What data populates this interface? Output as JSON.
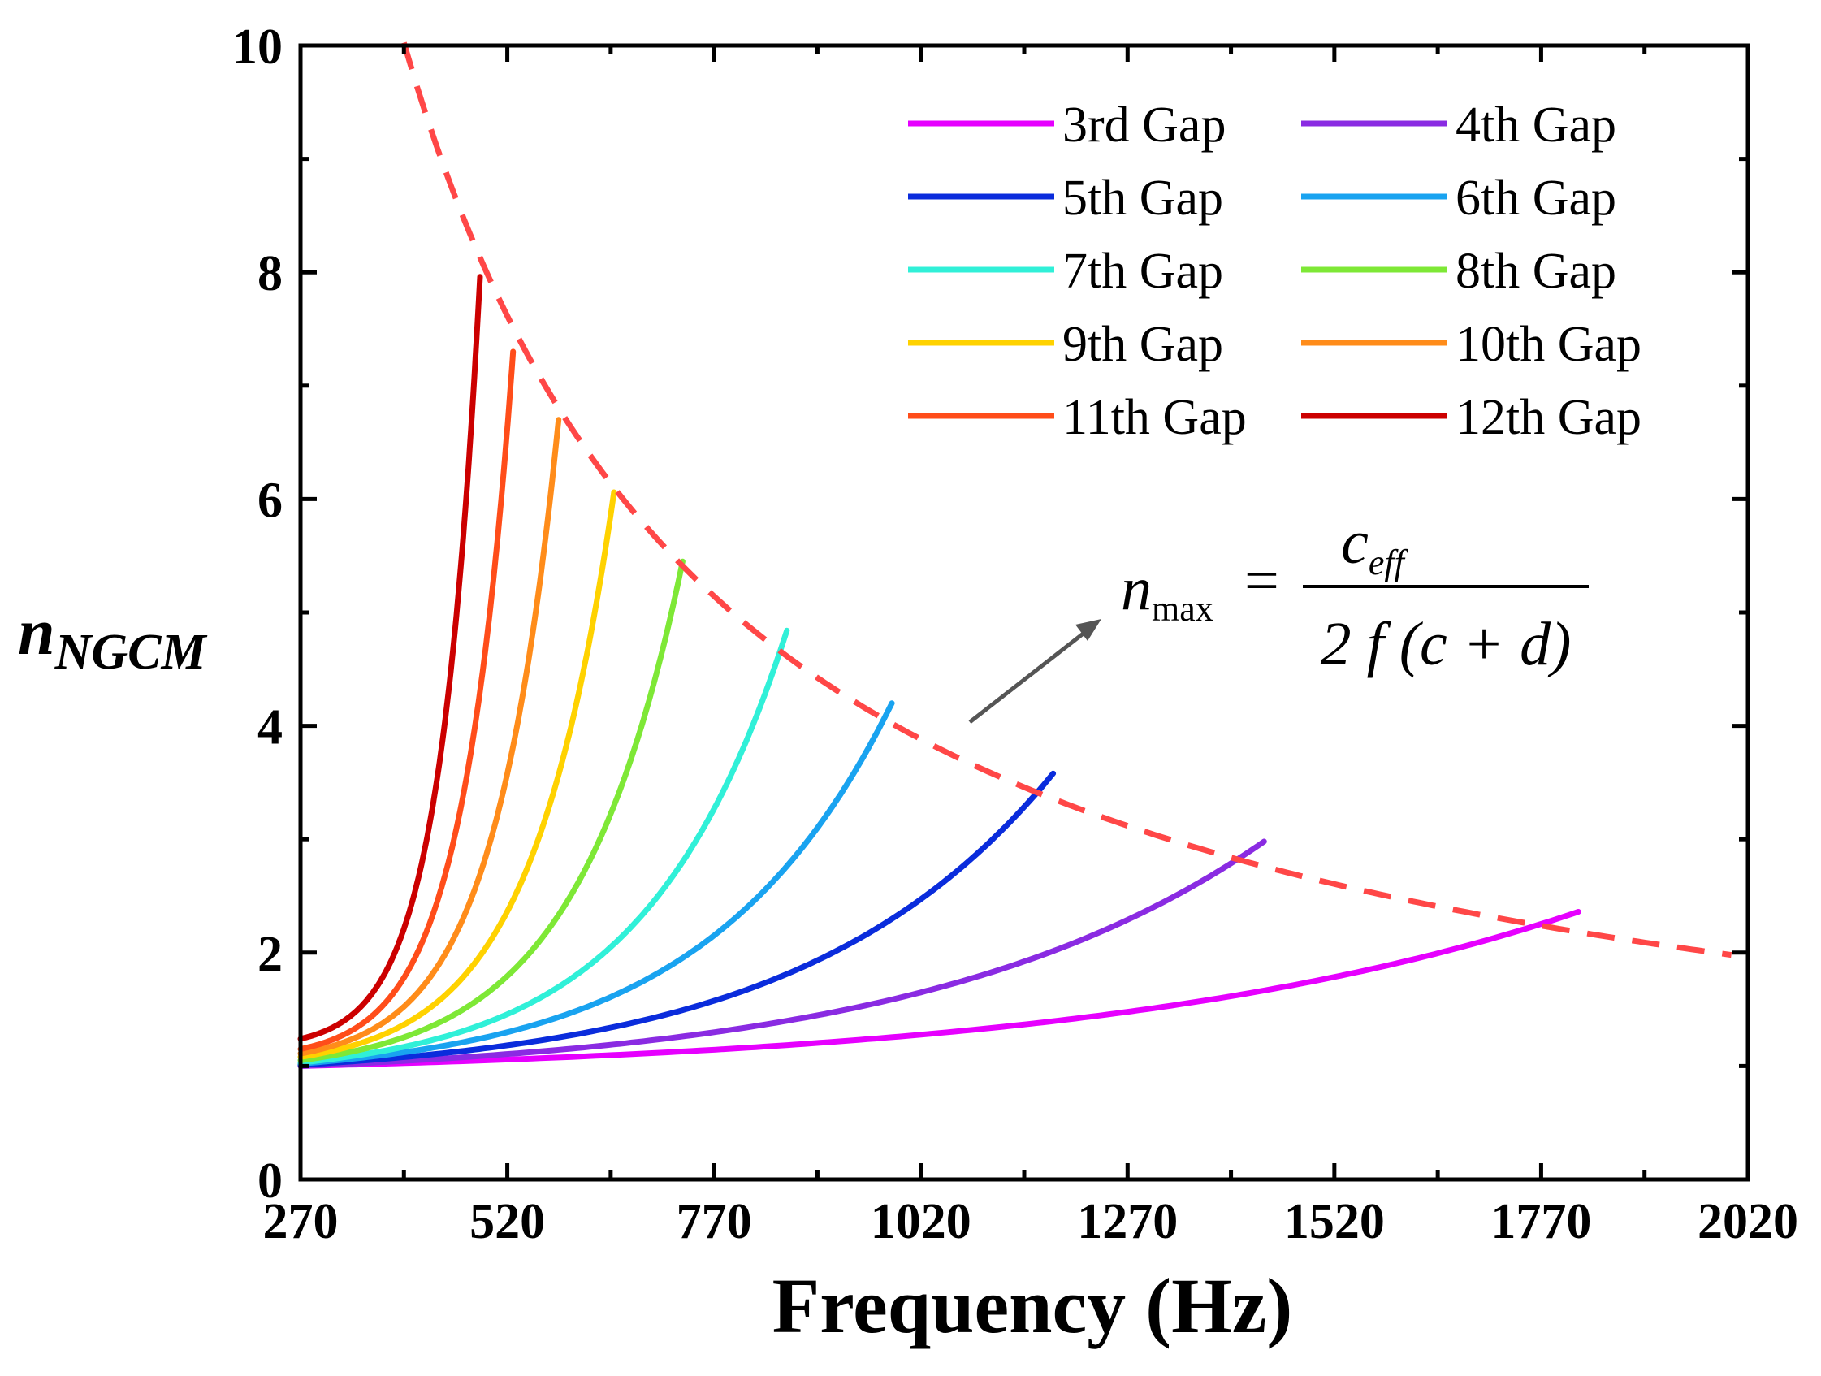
{
  "chart_data": {
    "type": "line",
    "xlabel": "Frequency (Hz)",
    "ylabel_main": "n",
    "ylabel_sub": "NGCM",
    "xlim": [
      270,
      2020
    ],
    "ylim": [
      0,
      10
    ],
    "xticks": [
      270,
      520,
      770,
      1020,
      1270,
      1520,
      1770,
      2020
    ],
    "yticks": [
      0,
      2,
      4,
      6,
      8,
      10
    ],
    "legend_position": "top-right",
    "series": [
      {
        "name": "3rd Gap",
        "color": "#e600ff",
        "start": [
          270,
          1.0
        ],
        "end": [
          1815,
          2.36
        ],
        "curvature": 2.6
      },
      {
        "name": "4th Gap",
        "color": "#8a2be2",
        "start": [
          270,
          1.0
        ],
        "end": [
          1435,
          2.98
        ],
        "curvature": 2.8
      },
      {
        "name": "5th Gap",
        "color": "#0a2cdc",
        "start": [
          270,
          1.01
        ],
        "end": [
          1180,
          3.58
        ],
        "curvature": 3.0
      },
      {
        "name": "6th Gap",
        "color": "#19a3f0",
        "start": [
          270,
          1.02
        ],
        "end": [
          985,
          4.2
        ],
        "curvature": 3.2
      },
      {
        "name": "7th Gap",
        "color": "#30f0d8",
        "start": [
          270,
          1.03
        ],
        "end": [
          858,
          4.84
        ],
        "curvature": 3.4
      },
      {
        "name": "8th Gap",
        "color": "#7ee836",
        "start": [
          270,
          1.05
        ],
        "end": [
          732,
          5.45
        ],
        "curvature": 3.6
      },
      {
        "name": "9th Gap",
        "color": "#ffd200",
        "start": [
          270,
          1.08
        ],
        "end": [
          649,
          6.06
        ],
        "curvature": 3.8
      },
      {
        "name": "10th Gap",
        "color": "#ff8c1a",
        "start": [
          270,
          1.11
        ],
        "end": [
          582,
          6.7
        ],
        "curvature": 4.0
      },
      {
        "name": "11th Gap",
        "color": "#ff4d1a",
        "start": [
          270,
          1.15
        ],
        "end": [
          527,
          7.3
        ],
        "curvature": 4.2
      },
      {
        "name": "12th Gap",
        "color": "#cc0000",
        "start": [
          270,
          1.24
        ],
        "end": [
          487,
          7.96
        ],
        "curvature": 4.4
      }
    ],
    "envelope": {
      "name": "n_max",
      "color": "#ff4747",
      "style": "dashed",
      "k": 3960,
      "x_range": [
        395,
        2000
      ]
    },
    "annotation": {
      "lhs": "n",
      "lhs_sub": "max",
      "eq": "=",
      "numerator": "c",
      "numerator_sub": "eff",
      "denominator": "2 f (c + d)",
      "arrow_color": "#555555"
    }
  }
}
